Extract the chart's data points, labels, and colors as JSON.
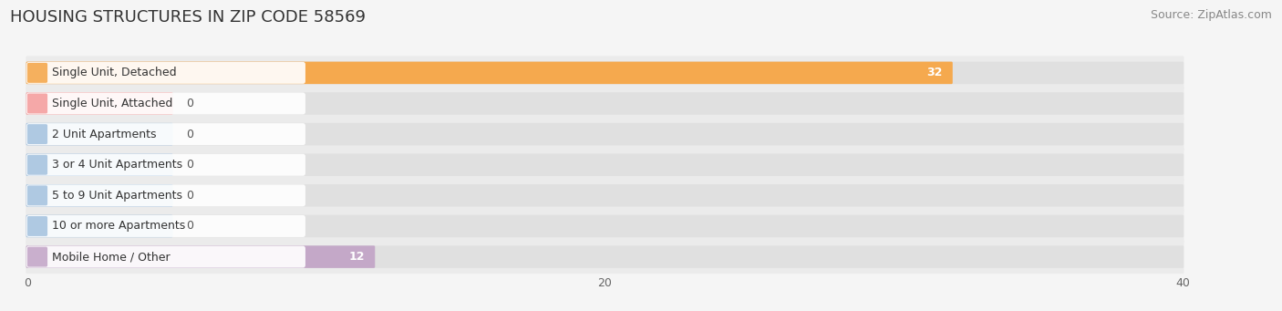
{
  "title": "HOUSING STRUCTURES IN ZIP CODE 58569",
  "source": "Source: ZipAtlas.com",
  "categories": [
    "Single Unit, Detached",
    "Single Unit, Attached",
    "2 Unit Apartments",
    "3 or 4 Unit Apartments",
    "5 to 9 Unit Apartments",
    "10 or more Apartments",
    "Mobile Home / Other"
  ],
  "values": [
    32,
    0,
    0,
    0,
    0,
    0,
    12
  ],
  "bar_colors": [
    "#F5A94E",
    "#F4A0A0",
    "#A8C4E0",
    "#A8C4E0",
    "#A8C4E0",
    "#A8C4E0",
    "#C4A8C8"
  ],
  "xlim": [
    -0.5,
    43
  ],
  "xticks": [
    0,
    20,
    40
  ],
  "background_color": "#f5f5f5",
  "row_bg_color": "#ebebeb",
  "bar_bg_color": "#e0e0e0",
  "title_fontsize": 13,
  "source_fontsize": 9,
  "label_fontsize": 9,
  "value_fontsize": 9,
  "bar_height": 0.65,
  "grid_color": "#ffffff"
}
